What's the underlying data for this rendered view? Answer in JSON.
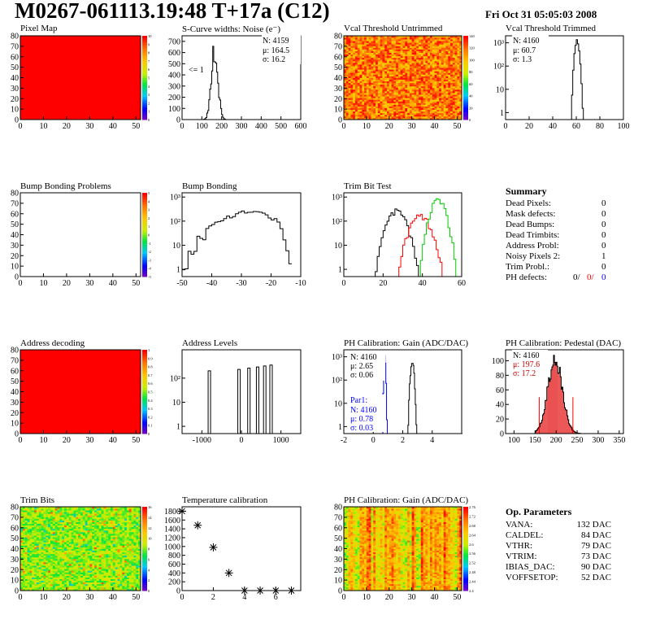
{
  "header": {
    "title": "M0267-061113.19:48 T+17a (C12)",
    "date": "Fri Oct 31 05:05:03 2008"
  },
  "panels": {
    "pixel_map": {
      "title": "Pixel Map"
    },
    "scurve": {
      "title": "S-Curve widths: Noise (e⁻)",
      "stats": [
        "N: 4159",
        "μ: 164.5",
        "σ: 16.2"
      ],
      "note": "<= 1"
    },
    "vcal_untrimmed": {
      "title": "Vcal Threshold Untrimmed"
    },
    "vcal_trimmed": {
      "title": "Vcal Threshold Trimmed",
      "stats": [
        "N: 4160",
        "μ: 60.7",
        "σ:  1.3"
      ]
    },
    "bump_problems": {
      "title": "Bump Bonding Problems"
    },
    "bump_bonding": {
      "title": "Bump Bonding"
    },
    "trim_bit_test": {
      "title": "Trim Bit Test"
    },
    "address_decoding": {
      "title": "Address decoding"
    },
    "address_levels": {
      "title": "Address Levels"
    },
    "ph_gain": {
      "title": "PH Calibration: Gain (ADC/DAC)",
      "stats": [
        "N: 4160",
        "μ: 2.65",
        "σ: 0.06"
      ],
      "par1_label": "Par1:",
      "par1_stats": [
        "N: 4160",
        "μ: 0.78",
        "σ: 0.03"
      ]
    },
    "ph_pedestal": {
      "title": "PH Calibration: Pedestal (DAC)",
      "stats": [
        "N: 4160"
      ],
      "stats_red": [
        "μ: 197.6",
        "σ: 17.2"
      ]
    },
    "trim_bits": {
      "title": "Trim Bits"
    },
    "temperature": {
      "title": "Temperature calibration"
    },
    "ph_gain_map": {
      "title": "PH Calibration: Gain (ADC/DAC)"
    }
  },
  "summary": {
    "title": "Summary",
    "rows": [
      {
        "label": "Dead Pixels:",
        "value": "0"
      },
      {
        "label": "Mask defects:",
        "value": "0"
      },
      {
        "label": "Dead Bumps:",
        "value": "0"
      },
      {
        "label": "Dead Trimbits:",
        "value": "0"
      },
      {
        "label": "Address Probl:",
        "value": "0"
      },
      {
        "label": "Noisy Pixels 2:",
        "value": "1"
      },
      {
        "label": "Trim Probl.:",
        "value": "0"
      }
    ],
    "ph_defects": {
      "label": "PH defects:",
      "values": [
        "0/",
        "0/",
        "0"
      ]
    }
  },
  "op_parameters": {
    "title": "Op. Parameters",
    "rows": [
      {
        "label": "VANA:",
        "value": "132 DAC"
      },
      {
        "label": "CALDEL:",
        "value": "84 DAC"
      },
      {
        "label": "VTHR:",
        "value": "79 DAC"
      },
      {
        "label": "VTRIM:",
        "value": "73 DAC"
      },
      {
        "label": "IBIAS_DAC:",
        "value": "90 DAC"
      },
      {
        "label": "VOFFSETOP:",
        "value": "52 DAC"
      }
    ]
  },
  "colors": {
    "red": "#ff0000",
    "green": "#00cc00",
    "blue": "#0000ff",
    "black": "#000000"
  },
  "chart_data": [
    {
      "id": "pixel_map",
      "type": "heatmap",
      "title": "Pixel Map",
      "xlim": [
        0,
        52
      ],
      "ylim": [
        0,
        80
      ],
      "xticks": [
        0,
        10,
        20,
        30,
        40,
        50
      ],
      "yticks": [
        0,
        10,
        20,
        30,
        40,
        50,
        60,
        70,
        80
      ],
      "zlim": [
        0,
        10
      ],
      "zticks": [
        0,
        1,
        2,
        3,
        4,
        5,
        6,
        7,
        8,
        9,
        10
      ],
      "uniform_value": 10
    },
    {
      "id": "scurve",
      "type": "line",
      "title": "S-Curve widths: Noise (e⁻)",
      "xlim": [
        0,
        600
      ],
      "ylim": [
        0,
        750
      ],
      "xticks": [
        0,
        100,
        200,
        300,
        400,
        500,
        600
      ],
      "yticks": [
        0,
        100,
        200,
        300,
        400,
        500,
        600,
        700
      ],
      "peak": {
        "mean": 164.5,
        "sigma": 16.2,
        "height": 690
      }
    },
    {
      "id": "vcal_untrimmed",
      "type": "heatmap",
      "title": "Vcal Threshold Untrimmed",
      "xlim": [
        0,
        52
      ],
      "ylim": [
        0,
        80
      ],
      "xticks": [
        0,
        10,
        20,
        30,
        40,
        50
      ],
      "yticks": [
        0,
        10,
        20,
        30,
        40,
        50,
        60,
        70,
        80
      ],
      "zlim": [
        0,
        140
      ],
      "zticks": [
        0,
        20,
        40,
        60,
        80,
        100,
        120,
        140
      ]
    },
    {
      "id": "vcal_trimmed",
      "type": "line",
      "title": "Vcal Threshold Trimmed",
      "log_y": true,
      "xlim": [
        0,
        100
      ],
      "ylim": [
        0.5,
        2000
      ],
      "xticks": [
        0,
        20,
        40,
        60,
        80,
        100
      ],
      "yticks": [
        1,
        10,
        100,
        1000
      ],
      "yticklabels": [
        "1",
        "10",
        "10²",
        "10³"
      ],
      "peak": {
        "mean": 60.7,
        "sigma": 1.3,
        "height": 1300
      }
    },
    {
      "id": "bump_problems",
      "type": "heatmap",
      "title": "Bump Bonding Problems",
      "xlim": [
        0,
        52
      ],
      "ylim": [
        0,
        80
      ],
      "xticks": [
        0,
        10,
        20,
        30,
        40,
        50
      ],
      "yticks": [
        0,
        10,
        20,
        30,
        40,
        50,
        60,
        70,
        80
      ],
      "zlim": [
        -5,
        5
      ],
      "zticks": [
        -5,
        -4,
        -3,
        -2,
        -1,
        0,
        1,
        2,
        3,
        4,
        5
      ]
    },
    {
      "id": "bump_bonding",
      "type": "line",
      "title": "Bump Bonding",
      "log_y": true,
      "xlim": [
        -50,
        -10
      ],
      "ylim": [
        0.5,
        1500
      ],
      "xticks": [
        -50,
        -40,
        -30,
        -20,
        -10
      ],
      "yticks": [
        1,
        10,
        100,
        1000
      ],
      "yticklabels": [
        "1",
        "10",
        "10²",
        "10³"
      ]
    },
    {
      "id": "trim_bit_test",
      "type": "line",
      "title": "Trim Bit Test",
      "log_y": true,
      "xlim": [
        0,
        60
      ],
      "ylim": [
        0.5,
        1500
      ],
      "xticks": [
        0,
        20,
        40,
        60
      ],
      "yticks": [
        1,
        10,
        100,
        1000
      ],
      "yticklabels": [
        "1",
        "10",
        "10²",
        "10³"
      ]
    },
    {
      "id": "address_decoding",
      "type": "heatmap",
      "title": "Address decoding",
      "xlim": [
        0,
        52
      ],
      "ylim": [
        0,
        80
      ],
      "xticks": [
        0,
        10,
        20,
        30,
        40,
        50
      ],
      "yticks": [
        0,
        10,
        20,
        30,
        40,
        50,
        60,
        70,
        80
      ],
      "zlim": [
        0,
        1
      ],
      "zticks": [
        0,
        0.1,
        0.2,
        0.3,
        0.4,
        0.5,
        0.6,
        0.7,
        0.8,
        0.9,
        1
      ],
      "uniform_value": 1
    },
    {
      "id": "address_levels",
      "type": "line",
      "title": "Address Levels",
      "log_y": true,
      "xlim": [
        -1500,
        1500
      ],
      "ylim": [
        0.5,
        1500
      ],
      "xticks": [
        -1000,
        0,
        1000
      ],
      "yticks": [
        1,
        10,
        100
      ],
      "yticklabels": [
        "1",
        "10",
        "10²"
      ],
      "peaks": [
        -800,
        -50,
        200,
        420,
        600,
        760
      ]
    },
    {
      "id": "ph_gain",
      "type": "line",
      "title": "PH Calibration: Gain (ADC/DAC)",
      "log_y": true,
      "xlim": [
        -2,
        6
      ],
      "ylim": [
        0.5,
        2000
      ],
      "xticks": [
        -2,
        0,
        2,
        4
      ],
      "yticks": [
        1,
        10,
        100,
        1000
      ],
      "yticklabels": [
        "1",
        "10",
        "10²",
        "10³"
      ]
    },
    {
      "id": "ph_pedestal",
      "type": "line",
      "title": "PH Calibration: Pedestal (DAC)",
      "xlim": [
        80,
        360
      ],
      "ylim": [
        0,
        115
      ],
      "xticks": [
        100,
        150,
        200,
        250,
        300,
        350
      ],
      "yticks": [
        0,
        20,
        40,
        60,
        80,
        100
      ]
    },
    {
      "id": "trim_bits",
      "type": "heatmap",
      "title": "Trim Bits",
      "xlim": [
        0,
        52
      ],
      "ylim": [
        0,
        80
      ],
      "xticks": [
        0,
        10,
        20,
        30,
        40,
        50
      ],
      "yticks": [
        0,
        10,
        20,
        30,
        40,
        50,
        60,
        70,
        80
      ],
      "zlim": [
        0,
        16
      ],
      "zticks": [
        0,
        2,
        4,
        6,
        8,
        10,
        12,
        14,
        16
      ]
    },
    {
      "id": "temperature",
      "type": "scatter",
      "title": "Temperature calibration",
      "xlim": [
        0,
        7.6
      ],
      "ylim": [
        0,
        1900
      ],
      "xticks": [
        0,
        2,
        4,
        6
      ],
      "yticks": [
        0,
        200,
        400,
        600,
        800,
        1000,
        1200,
        1400,
        1600,
        1800
      ],
      "x": [
        0,
        1,
        2,
        3,
        4,
        5,
        6,
        7
      ],
      "y": [
        1800,
        1480,
        980,
        400,
        0,
        0,
        0,
        0
      ]
    },
    {
      "id": "ph_gain_map",
      "type": "heatmap",
      "title": "PH Calibration: Gain (ADC/DAC)",
      "xlim": [
        0,
        52
      ],
      "ylim": [
        0,
        80
      ],
      "xticks": [
        0,
        10,
        20,
        30,
        40,
        50
      ],
      "yticks": [
        0,
        10,
        20,
        30,
        40,
        50,
        60,
        70,
        80
      ],
      "zlim": [
        2.4,
        2.76
      ],
      "zticks": [
        2.4,
        2.44,
        2.48,
        2.52,
        2.56,
        2.6,
        2.64,
        2.68,
        2.72,
        2.76
      ]
    }
  ]
}
